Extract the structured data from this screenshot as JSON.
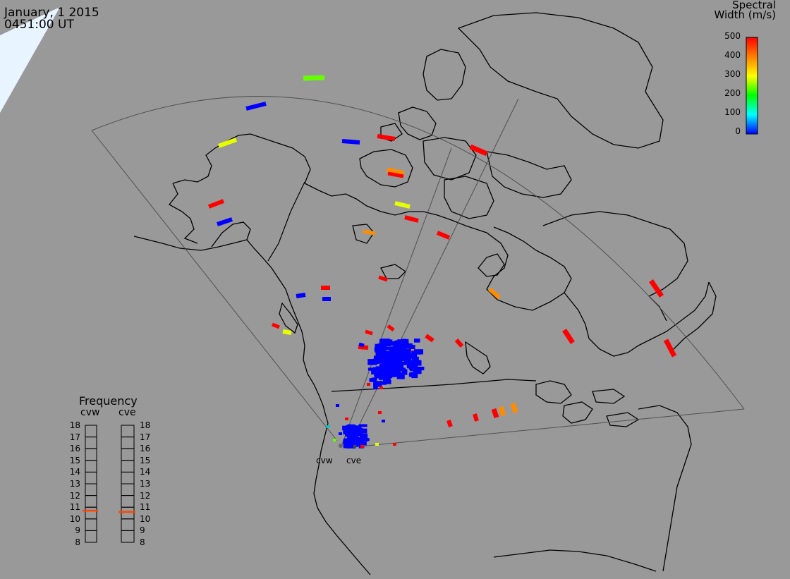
{
  "header": {
    "date": "January, 1 2015",
    "time": "0451:00 UT"
  },
  "colorbar": {
    "title_line1": "Spectral",
    "title_line2": "Width (m/s)",
    "ticks": [
      "500",
      "400",
      "300",
      "200",
      "100",
      "0"
    ],
    "stops": [
      "#ff0000",
      "#ff7f00",
      "#ffff00",
      "#00ff00",
      "#00ffff",
      "#0000ff"
    ]
  },
  "frequency": {
    "title": "Frequency",
    "radars": [
      {
        "name": "cvw",
        "value": 10.7
      },
      {
        "name": "cve",
        "value": 10.6
      }
    ],
    "scale": [
      "18",
      "17",
      "16",
      "15",
      "14",
      "13",
      "12",
      "11",
      "10",
      "9",
      "8"
    ],
    "marker_color": "#ff4500"
  },
  "radar_sites": [
    {
      "name": "cvw"
    },
    {
      "name": "cve"
    }
  ],
  "colors": {
    "background": "#999999",
    "coastline": "#000000",
    "fov": "#505050",
    "low_width": "#0000ff",
    "high_width": "#ff0000"
  }
}
